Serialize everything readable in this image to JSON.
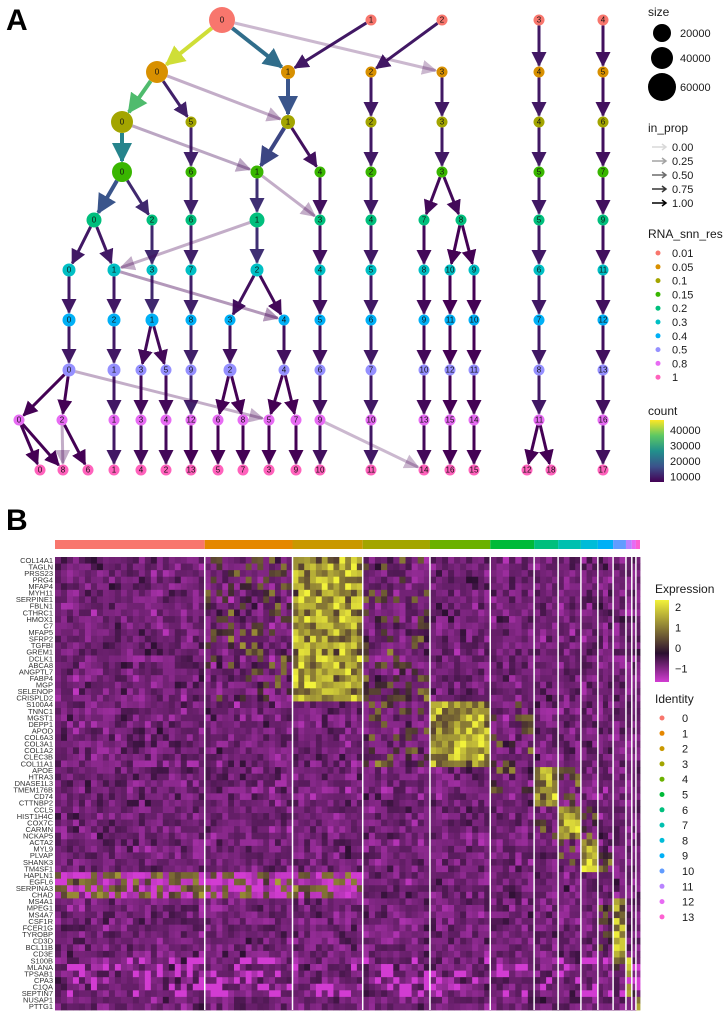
{
  "panels": {
    "a": "A",
    "b": "B"
  },
  "tree": {
    "levels": [
      {
        "res": "0.01",
        "clusters": [
          0,
          1,
          2,
          3,
          4
        ]
      },
      {
        "res": "0.05",
        "clusters": [
          0,
          1,
          2,
          3,
          4,
          5
        ]
      },
      {
        "res": "0.1",
        "clusters": [
          0,
          5,
          1,
          2,
          3,
          4,
          6
        ]
      },
      {
        "res": "0.15",
        "clusters": [
          0,
          6,
          1,
          4,
          2,
          3,
          5,
          7
        ]
      },
      {
        "res": "0.2",
        "clusters": [
          0,
          2,
          6,
          1,
          3,
          4,
          7,
          8,
          5,
          9
        ]
      },
      {
        "res": "0.3",
        "clusters": [
          0,
          1,
          3,
          7,
          2,
          4,
          5,
          8,
          10,
          9,
          6,
          11
        ]
      },
      {
        "res": "0.4",
        "clusters": [
          0,
          2,
          1,
          8,
          3,
          4,
          5,
          6,
          9,
          11,
          10,
          7,
          12
        ]
      },
      {
        "res": "0.5",
        "clusters": [
          0,
          1,
          3,
          5,
          9,
          2,
          4,
          6,
          7,
          10,
          12,
          11,
          8,
          13
        ]
      },
      {
        "res": "0.8",
        "clusters": [
          0,
          2,
          1,
          3,
          4,
          12,
          6,
          8,
          5,
          7,
          9,
          10,
          13,
          15,
          14,
          11,
          16
        ]
      },
      {
        "res": "1",
        "clusters": [
          0,
          8,
          6,
          1,
          4,
          2,
          13,
          5,
          7,
          3,
          9,
          10,
          11,
          14,
          16,
          15,
          12,
          18,
          17
        ]
      }
    ],
    "edges": [
      [
        [
          0,
          0,
          1.0,
          42000
        ],
        [
          0,
          1,
          1.0,
          18000
        ],
        [
          1,
          1,
          1.0,
          6000
        ],
        [
          2,
          2,
          1.0,
          6000
        ],
        [
          3,
          4,
          1.0,
          6000
        ],
        [
          4,
          5,
          1.0,
          5000
        ],
        [
          0,
          3,
          0.15,
          2000
        ]
      ],
      [
        [
          0,
          0,
          1.0,
          32000
        ],
        [
          0,
          5,
          1.0,
          7000
        ],
        [
          1,
          1,
          1.0,
          14000
        ],
        [
          2,
          2,
          1.0,
          6000
        ],
        [
          3,
          3,
          1.0,
          6000
        ],
        [
          4,
          4,
          1.0,
          6000
        ],
        [
          5,
          6,
          1.0,
          5000
        ],
        [
          0,
          1,
          0.2,
          3000
        ]
      ],
      [
        [
          0,
          0,
          1.0,
          22000
        ],
        [
          5,
          6,
          1.0,
          7000
        ],
        [
          1,
          1,
          1.0,
          12000
        ],
        [
          1,
          4,
          1.0,
          5000
        ],
        [
          2,
          2,
          1.0,
          6000
        ],
        [
          3,
          3,
          1.0,
          6000
        ],
        [
          4,
          5,
          1.0,
          6000
        ],
        [
          6,
          7,
          1.0,
          5000
        ],
        [
          0,
          1,
          0.25,
          4000
        ]
      ],
      [
        [
          0,
          0,
          1.0,
          14000
        ],
        [
          0,
          2,
          1.0,
          8000
        ],
        [
          6,
          6,
          1.0,
          7000
        ],
        [
          1,
          1,
          1.0,
          9000
        ],
        [
          4,
          3,
          1.0,
          5000
        ],
        [
          2,
          4,
          1.0,
          6000
        ],
        [
          3,
          7,
          1.0,
          4000
        ],
        [
          3,
          8,
          1.0,
          4000
        ],
        [
          5,
          5,
          1.0,
          6000
        ],
        [
          7,
          9,
          1.0,
          5000
        ],
        [
          1,
          3,
          0.2,
          2000
        ]
      ],
      [
        [
          0,
          0,
          1.0,
          6000
        ],
        [
          0,
          1,
          1.0,
          6000
        ],
        [
          2,
          3,
          1.0,
          8000
        ],
        [
          6,
          7,
          1.0,
          7000
        ],
        [
          1,
          2,
          1.0,
          9000
        ],
        [
          3,
          4,
          1.0,
          5000
        ],
        [
          4,
          5,
          1.0,
          6000
        ],
        [
          7,
          8,
          1.0,
          4000
        ],
        [
          8,
          10,
          1.0,
          3000
        ],
        [
          8,
          9,
          1.0,
          3000
        ],
        [
          5,
          6,
          1.0,
          6000
        ],
        [
          9,
          11,
          1.0,
          5000
        ],
        [
          1,
          1,
          0.2,
          3000
        ]
      ],
      [
        [
          0,
          0,
          1.0,
          6000
        ],
        [
          1,
          2,
          1.0,
          6000
        ],
        [
          3,
          1,
          1.0,
          8000
        ],
        [
          7,
          8,
          1.0,
          7000
        ],
        [
          2,
          3,
          1.0,
          5000
        ],
        [
          2,
          4,
          1.0,
          4000
        ],
        [
          4,
          5,
          1.0,
          5000
        ],
        [
          5,
          6,
          1.0,
          6000
        ],
        [
          8,
          9,
          1.0,
          4000
        ],
        [
          10,
          11,
          1.0,
          3000
        ],
        [
          9,
          10,
          1.0,
          3000
        ],
        [
          6,
          7,
          1.0,
          6000
        ],
        [
          11,
          12,
          1.0,
          5000
        ],
        [
          1,
          4,
          0.3,
          2000
        ]
      ],
      [
        [
          0,
          0,
          1.0,
          6000
        ],
        [
          2,
          1,
          1.0,
          6000
        ],
        [
          1,
          3,
          1.0,
          4000
        ],
        [
          1,
          5,
          1.0,
          4000
        ],
        [
          8,
          9,
          1.0,
          7000
        ],
        [
          3,
          2,
          1.0,
          5000
        ],
        [
          4,
          4,
          1.0,
          5000
        ],
        [
          5,
          6,
          1.0,
          5000
        ],
        [
          6,
          7,
          1.0,
          6000
        ],
        [
          9,
          10,
          1.0,
          4000
        ],
        [
          11,
          12,
          1.0,
          3000
        ],
        [
          10,
          11,
          1.0,
          3000
        ],
        [
          7,
          8,
          1.0,
          6000
        ],
        [
          12,
          13,
          1.0,
          5000
        ]
      ],
      [
        [
          0,
          0,
          1.0,
          3000
        ],
        [
          0,
          2,
          1.0,
          3000
        ],
        [
          1,
          1,
          1.0,
          6000
        ],
        [
          3,
          3,
          1.0,
          4000
        ],
        [
          5,
          4,
          1.0,
          4000
        ],
        [
          9,
          12,
          1.0,
          7000
        ],
        [
          2,
          6,
          1.0,
          3000
        ],
        [
          2,
          8,
          1.0,
          2500
        ],
        [
          4,
          5,
          1.0,
          3000
        ],
        [
          4,
          7,
          1.0,
          2500
        ],
        [
          6,
          9,
          1.0,
          5000
        ],
        [
          7,
          10,
          1.0,
          6000
        ],
        [
          10,
          13,
          1.0,
          4000
        ],
        [
          12,
          15,
          1.0,
          3000
        ],
        [
          11,
          14,
          1.0,
          3000
        ],
        [
          8,
          11,
          1.0,
          6000
        ],
        [
          13,
          16,
          1.0,
          5000
        ],
        [
          0,
          5,
          0.2,
          1500
        ]
      ],
      [
        [
          0,
          0,
          1.0,
          2000
        ],
        [
          0,
          8,
          1.0,
          1500
        ],
        [
          2,
          6,
          1.0,
          3000
        ],
        [
          1,
          1,
          1.0,
          6000
        ],
        [
          3,
          4,
          1.0,
          4000
        ],
        [
          4,
          2,
          1.0,
          4000
        ],
        [
          12,
          13,
          1.0,
          3000
        ],
        [
          6,
          5,
          1.0,
          3000
        ],
        [
          8,
          7,
          1.0,
          2500
        ],
        [
          5,
          3,
          1.0,
          3000
        ],
        [
          7,
          9,
          1.0,
          2500
        ],
        [
          9,
          10,
          1.0,
          5000
        ],
        [
          10,
          11,
          1.0,
          6000
        ],
        [
          13,
          14,
          1.0,
          4000
        ],
        [
          15,
          16,
          1.0,
          3000
        ],
        [
          14,
          15,
          1.0,
          3000
        ],
        [
          11,
          12,
          1.0,
          3000
        ],
        [
          11,
          18,
          1.0,
          3000
        ],
        [
          16,
          17,
          1.0,
          5000
        ],
        [
          2,
          8,
          0.2,
          1000
        ],
        [
          9,
          14,
          0.15,
          1000
        ]
      ]
    ]
  },
  "legend_a": {
    "size_title": "size",
    "size_values": [
      "20000",
      "40000",
      "60000"
    ],
    "in_prop_title": "in_prop",
    "in_prop_values": [
      "0.00",
      "0.25",
      "0.50",
      "0.75",
      "1.00"
    ],
    "res_title": "RNA_snn_res.",
    "res_values": [
      "0.01",
      "0.05",
      "0.1",
      "0.15",
      "0.2",
      "0.3",
      "0.4",
      "0.5",
      "0.8",
      "1"
    ],
    "res_colors": [
      "#F8766D",
      "#D89000",
      "#A3A500",
      "#39B600",
      "#00BF7D",
      "#00BFC4",
      "#00B0F6",
      "#9590FF",
      "#E76BF3",
      "#FF62BC"
    ],
    "count_title": "count",
    "count_ticks": [
      "40000",
      "30000",
      "20000",
      "10000"
    ]
  },
  "heatmap": {
    "identities": [
      "0",
      "1",
      "2",
      "3",
      "4",
      "5",
      "6",
      "7",
      "8",
      "9",
      "10",
      "11",
      "12",
      "13"
    ],
    "identity_colors": [
      "#F8766D",
      "#E58700",
      "#C99800",
      "#A3A500",
      "#6BB100",
      "#00BA38",
      "#00BF7D",
      "#00C0AF",
      "#00BCD8",
      "#00B0F6",
      "#619CFF",
      "#B983FF",
      "#E76BF3",
      "#FD61D1"
    ],
    "cell_fraction": [
      0.256,
      0.15,
      0.12,
      0.115,
      0.103,
      0.075,
      0.041,
      0.039,
      0.029,
      0.026,
      0.022,
      0.01,
      0.007,
      0.007
    ],
    "marker_groups": [
      {
        "cluster": 2,
        "genes": [
          "COL14A1",
          "TAGLN",
          "PRSS23",
          "PRG4",
          "MFAP4",
          "MYH11",
          "SERPINE1",
          "FBLN1",
          "CTHRC1",
          "HMOX1",
          "C7"
        ]
      },
      {
        "cluster": 2,
        "genes": [
          "MFAP5",
          "SFRP2",
          "TGFBI",
          "GREM1",
          "DCLK1",
          "ABCA8",
          "ANGPTL7",
          "FABP4",
          "MGP",
          "SELENOP",
          "CRISPLD2"
        ]
      },
      {
        "cluster": 4,
        "genes": [
          "S100A4",
          "TNNC1",
          "MGST1",
          "DEPP1",
          "APOD",
          "COL6A3",
          "COL3A1",
          "COL1A2",
          "CLEC3B",
          "COL11A1"
        ]
      },
      {
        "cluster": 6,
        "genes": [
          "APOE",
          "HTRA3",
          "DNASE1L3",
          "TMEM176B",
          "CD74",
          "CTTNBP2"
        ]
      },
      {
        "cluster": 7,
        "genes": [
          "CCL5",
          "HIST1H4C",
          "COX7C",
          "CARMN",
          "NCKAP5"
        ]
      },
      {
        "cluster": 8,
        "genes": [
          "ACTA2",
          "MYL9",
          "PLVAP",
          "SHANK3",
          "TM4SF1"
        ]
      },
      {
        "cluster": 0,
        "genes": [
          "HAPLN1",
          "EGFL6",
          "SERPINA3",
          "CHAD"
        ]
      },
      {
        "cluster": 10,
        "genes": [
          "MS4A1",
          "MPEG1",
          "MS4A7",
          "CSF1R",
          "FCER1G",
          "TYROBP",
          "CD3D",
          "BCL11B",
          "CD3E"
        ]
      },
      {
        "cluster": 11,
        "genes": [
          "S100B",
          "MLANA",
          "TPSAB1",
          "CPA3",
          "C1QA",
          "SEPTIN7"
        ]
      },
      {
        "cluster": 13,
        "genes": [
          "NUSAP1",
          "PTTG1"
        ]
      }
    ],
    "expression_title": "Expression",
    "expression_ticks": [
      "2",
      "1",
      "0",
      "−1"
    ],
    "expression_colors": {
      "low": "#D23CD2",
      "mid": "#2B0F30",
      "high": "#F2F23A"
    },
    "identity_title": "Identity"
  }
}
